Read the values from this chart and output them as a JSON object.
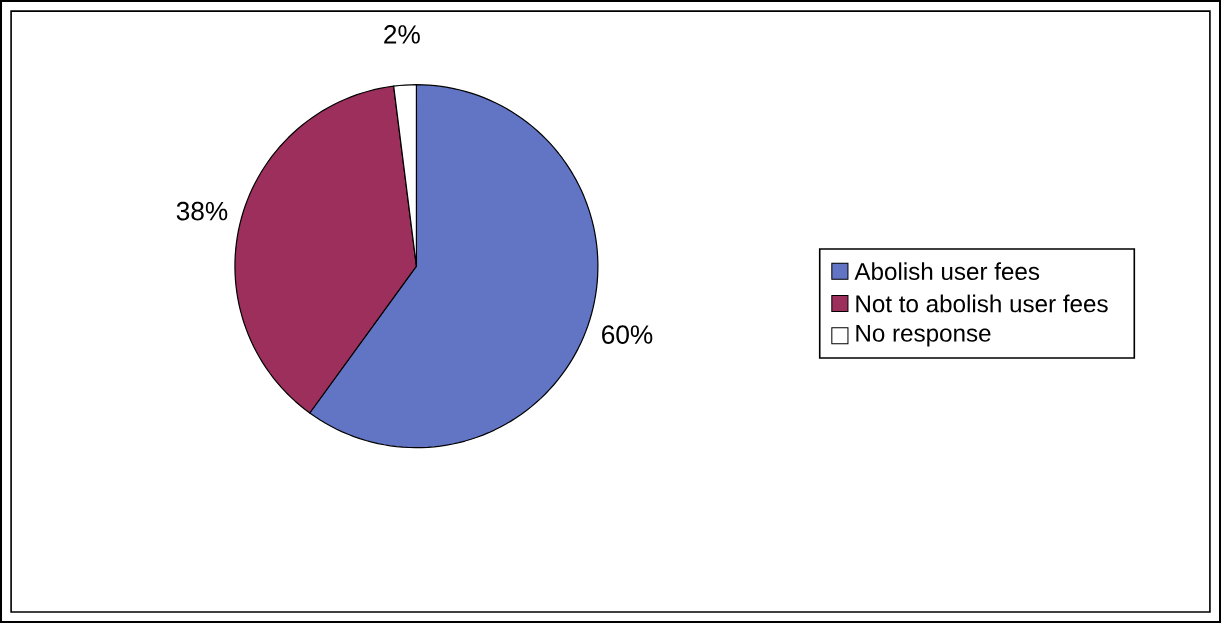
{
  "chart_data": {
    "type": "pie",
    "categories": [
      "Abolish user fees",
      "Not to abolish user fees",
      "No response"
    ],
    "values": [
      60,
      38,
      2
    ],
    "colors": [
      "#6274c4",
      "#9c2f5c",
      "#ffffff"
    ],
    "value_labels": [
      "60%",
      "38%",
      "2%"
    ],
    "legend": "right"
  }
}
